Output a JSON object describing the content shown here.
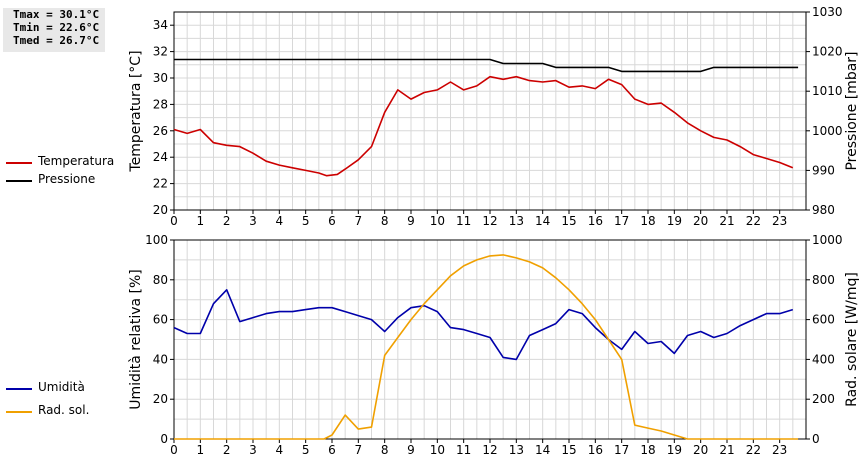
{
  "stats": {
    "tmax": "Tmax = 30.1°C",
    "tmin": "Tmin = 22.6°C",
    "tmed": "Tmed = 26.7°C"
  },
  "legend_top": [
    {
      "label": "Temperatura",
      "color": "#cc0000"
    },
    {
      "label": "Pressione",
      "color": "#000000"
    }
  ],
  "legend_bottom": [
    {
      "label": "Umidità",
      "color": "#0000aa"
    },
    {
      "label": "Rad. sol.",
      "color": "#f0a000"
    }
  ],
  "chart_data": [
    {
      "type": "line",
      "ylabel": "Temperatura [°C]",
      "y2label": "Pressione [mbar]",
      "xlim": [
        0,
        24
      ],
      "xticks": [
        0,
        1,
        2,
        3,
        4,
        5,
        6,
        7,
        8,
        9,
        10,
        11,
        12,
        13,
        14,
        15,
        16,
        17,
        18,
        19,
        20,
        21,
        22,
        23
      ],
      "ylim": [
        20,
        35
      ],
      "yticks": [
        20,
        22,
        24,
        26,
        28,
        30,
        32,
        34
      ],
      "y2lim": [
        980,
        1030
      ],
      "y2ticks": [
        980,
        990,
        1000,
        1010,
        1020,
        1030
      ],
      "grid": true,
      "series": [
        {
          "name": "Temperatura",
          "axis": "left",
          "color": "#cc0000",
          "x": [
            0,
            0.5,
            1,
            1.5,
            2,
            2.5,
            3,
            3.5,
            4,
            4.5,
            5,
            5.5,
            5.8,
            6.2,
            6.5,
            7,
            7.5,
            8,
            8.5,
            9,
            9.5,
            10,
            10.5,
            11,
            11.5,
            12,
            12.5,
            13,
            13.5,
            14,
            14.5,
            15,
            15.5,
            16,
            16.5,
            17,
            17.5,
            18,
            18.5,
            19,
            19.5,
            20,
            20.5,
            21,
            21.5,
            22,
            22.5,
            23,
            23.5
          ],
          "y": [
            26.1,
            25.8,
            26.1,
            25.1,
            24.9,
            24.8,
            24.3,
            23.7,
            23.4,
            23.2,
            23.0,
            22.8,
            22.6,
            22.7,
            23.1,
            23.8,
            24.8,
            27.4,
            29.1,
            28.4,
            28.9,
            29.1,
            29.7,
            29.1,
            29.4,
            30.1,
            29.9,
            30.1,
            29.8,
            29.7,
            29.8,
            29.3,
            29.4,
            29.2,
            29.9,
            29.5,
            28.4,
            28.0,
            28.1,
            27.4,
            26.6,
            26.0,
            25.5,
            25.3,
            24.8,
            24.2,
            23.9,
            23.6,
            23.2
          ]
        },
        {
          "name": "Pressione",
          "axis": "right",
          "color": "#000000",
          "x": [
            0,
            12,
            12.5,
            14,
            14.5,
            16.5,
            17,
            20,
            20.5,
            23.7
          ],
          "y": [
            1018,
            1018,
            1017,
            1017,
            1016,
            1016,
            1015,
            1015,
            1016,
            1016
          ]
        }
      ]
    },
    {
      "type": "line",
      "ylabel": "Umidità relativa [%]",
      "y2label": "Rad. solare [W/mq]",
      "xlim": [
        0,
        24
      ],
      "xticks": [
        0,
        1,
        2,
        3,
        4,
        5,
        6,
        7,
        8,
        9,
        10,
        11,
        12,
        13,
        14,
        15,
        16,
        17,
        18,
        19,
        20,
        21,
        22,
        23
      ],
      "ylim": [
        0,
        100
      ],
      "yticks": [
        0,
        20,
        40,
        60,
        80,
        100
      ],
      "y2lim": [
        0,
        1000
      ],
      "y2ticks": [
        0,
        200,
        400,
        600,
        800,
        1000
      ],
      "grid": true,
      "series": [
        {
          "name": "Umidità",
          "axis": "left",
          "color": "#0000aa",
          "x": [
            0,
            0.5,
            1,
            1.5,
            2,
            2.5,
            3,
            3.5,
            4,
            4.5,
            5,
            5.5,
            6,
            6.5,
            7,
            7.5,
            8,
            8.5,
            9,
            9.5,
            10,
            10.5,
            11,
            11.5,
            12,
            12.5,
            13,
            13.5,
            14,
            14.5,
            15,
            15.5,
            16,
            16.5,
            17,
            17.5,
            18,
            18.5,
            19,
            19.5,
            20,
            20.5,
            21,
            21.5,
            22,
            22.5,
            23,
            23.5
          ],
          "y": [
            56,
            53,
            53,
            68,
            75,
            59,
            61,
            63,
            64,
            64,
            65,
            66,
            66,
            64,
            62,
            60,
            54,
            61,
            66,
            67,
            64,
            56,
            55,
            53,
            51,
            41,
            40,
            52,
            55,
            58,
            65,
            63,
            56,
            50,
            45,
            54,
            48,
            49,
            43,
            52,
            54,
            51,
            53,
            57,
            60,
            63,
            63,
            65
          ]
        },
        {
          "name": "Rad. sol.",
          "axis": "right",
          "color": "#f0a000",
          "x": [
            0,
            5.7,
            6,
            6.5,
            7,
            7.5,
            8,
            8.5,
            9,
            9.5,
            10,
            10.5,
            11,
            11.5,
            12,
            12.5,
            13,
            13.5,
            14,
            14.5,
            15,
            15.5,
            16,
            16.5,
            17,
            17.5,
            18,
            18.5,
            19,
            19.5,
            23.7
          ],
          "y": [
            0,
            0,
            20,
            120,
            50,
            60,
            420,
            510,
            600,
            680,
            750,
            820,
            870,
            900,
            920,
            925,
            910,
            890,
            860,
            810,
            750,
            680,
            600,
            500,
            400,
            70,
            55,
            40,
            20,
            0,
            0
          ]
        }
      ]
    }
  ]
}
